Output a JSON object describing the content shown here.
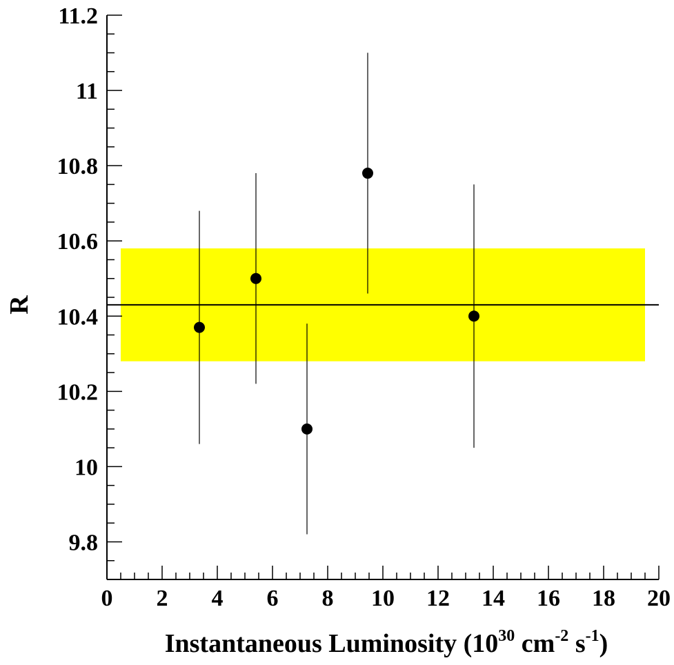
{
  "chart_data": {
    "type": "scatter",
    "xlabel": {
      "parts": [
        {
          "text": "Instantaneous Luminosity (10",
          "sup": false
        },
        {
          "text": "30",
          "sup": true
        },
        {
          "text": " cm",
          "sup": false
        },
        {
          "text": "-2",
          "sup": true
        },
        {
          "text": " s",
          "sup": false
        },
        {
          "text": "-1",
          "sup": true
        },
        {
          "text": ")",
          "sup": false
        }
      ]
    },
    "ylabel": "R",
    "xlim": [
      0,
      20
    ],
    "ylim": [
      9.7,
      11.2
    ],
    "x_ticks": [
      0,
      2,
      4,
      6,
      8,
      10,
      12,
      14,
      16,
      18,
      20
    ],
    "x_tick_labels": [
      "0",
      "2",
      "4",
      "6",
      "8",
      "10",
      "12",
      "14",
      "16",
      "18",
      "20"
    ],
    "y_ticks": [
      9.8,
      10,
      10.2,
      10.4,
      10.6,
      10.8,
      11,
      11.2
    ],
    "y_tick_labels": [
      "9.8",
      "10",
      "10.2",
      "10.4",
      "10.6",
      "10.8",
      "11",
      "11.2"
    ],
    "grid": false,
    "series": [
      {
        "points": [
          {
            "x": 3.35,
            "y": 10.37,
            "y_low": 10.06,
            "y_high": 10.68
          },
          {
            "x": 5.4,
            "y": 10.5,
            "y_low": 10.22,
            "y_high": 10.78
          },
          {
            "x": 7.25,
            "y": 10.1,
            "y_low": 9.82,
            "y_high": 10.38
          },
          {
            "x": 9.45,
            "y": 10.78,
            "y_low": 10.46,
            "y_high": 11.1
          },
          {
            "x": 13.3,
            "y": 10.4,
            "y_low": 10.05,
            "y_high": 10.75
          }
        ]
      }
    ],
    "reference_line": {
      "y": 10.43,
      "x_start": 0,
      "x_end": 20
    },
    "band": {
      "y_low": 10.28,
      "y_high": 10.58,
      "x_start": 0.5,
      "x_end": 19.5,
      "color": "#ffff00"
    },
    "colors": {
      "points": "#000000",
      "axes": "#000000",
      "band": "#ffff00"
    }
  }
}
